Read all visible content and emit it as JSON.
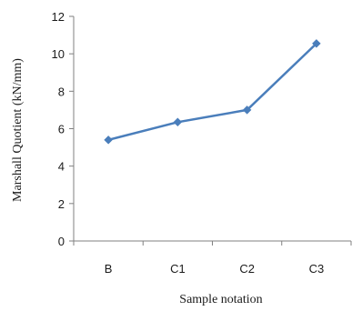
{
  "chart_data": {
    "type": "line",
    "categories": [
      "B",
      "C1",
      "C2",
      "C3"
    ],
    "series": [
      {
        "values": [
          5.4,
          6.35,
          7.0,
          10.55
        ]
      }
    ],
    "xlabel": "Sample notation",
    "ylabel": "Marshall Quotient (kN/mm)",
    "ylim": [
      0,
      12
    ],
    "yticks": [
      0,
      2,
      4,
      6,
      8,
      10,
      12
    ],
    "grid": false,
    "legend": "none",
    "colors": {
      "line": "#4a7ebb",
      "marker": "#4a7ebb",
      "axis": "#808080"
    },
    "marker": "diamond"
  }
}
